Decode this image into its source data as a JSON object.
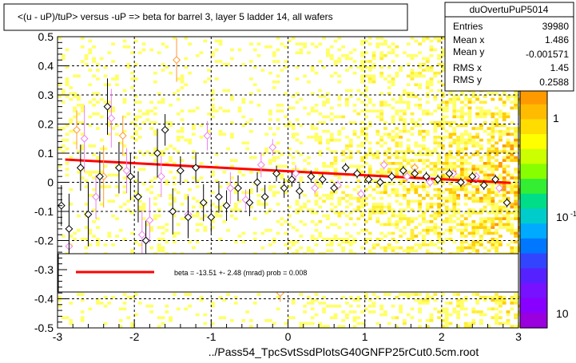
{
  "title": "<(u - uP)/tuP> versus  -uP => beta for barrel 3, layer 5 ladder 14, all wafers",
  "footer": "../Pass54_TpcSvtSsdPlotsG40GNFP25rCut0.5cm.root",
  "stats": {
    "name": "duOvertuPuP5014",
    "rows": [
      {
        "label": "Entries",
        "value": "39980"
      },
      {
        "label": "Mean x",
        "value": "1.486"
      },
      {
        "label": "Mean y",
        "value": "-0.001571"
      },
      {
        "label": "RMS x",
        "value": "1.45"
      },
      {
        "label": "RMS y",
        "value": "0.2588"
      }
    ]
  },
  "fit_legend": "beta =  -13.51 +-  2.48 (mrad) prob = 0.008",
  "colors": {
    "frame": "#000000",
    "fit_line": "#ff0000",
    "profile_black": "#000000",
    "profile_magenta": "#ee82ee",
    "profile_orange": "#ff9933",
    "heat_low": "#ffff66",
    "heat_mid": "#ff9900"
  },
  "chart_data": {
    "type": "heatmap",
    "x_range": [
      -3,
      3
    ],
    "y_range": [
      -0.5,
      0.5
    ],
    "x_ticks": [
      "-3",
      "-2",
      "-1",
      "0",
      "1",
      "2",
      "3"
    ],
    "y_ticks": [
      "-0.5",
      "-0.4",
      "-0.3",
      "-0.2",
      "-0.1",
      "0",
      "0.1",
      "0.2",
      "0.3",
      "0.4",
      "0.5"
    ],
    "z_ticks": [
      "1",
      "10",
      "10"
    ],
    "z_tick_exponent": "-1",
    "grid": true,
    "fit_line": {
      "x": [
        -2.9,
        2.9
      ],
      "y": [
        0.078,
        -0.002
      ]
    },
    "profile_black": {
      "x": [
        -2.95,
        -2.85,
        -2.7,
        -2.6,
        -2.45,
        -2.35,
        -2.2,
        -2.05,
        -1.95,
        -1.85,
        -1.7,
        -1.6,
        -1.5,
        -1.4,
        -1.3,
        -1.2,
        -1.1,
        -1.0,
        -0.9,
        -0.8,
        -0.65,
        -0.5,
        -0.4,
        -0.3,
        -0.15,
        -0.05,
        0.05,
        0.15,
        0.3,
        0.45,
        0.6,
        0.75,
        0.9,
        1.05,
        1.2,
        1.35,
        1.5,
        1.65,
        1.8,
        1.95,
        2.1,
        2.25,
        2.4,
        2.55,
        2.7,
        2.85
      ],
      "y": [
        -0.08,
        -0.16,
        0.05,
        -0.11,
        0.02,
        0.26,
        0.05,
        0.02,
        -0.05,
        -0.2,
        0.1,
        0.18,
        -0.1,
        0.04,
        -0.12,
        0.05,
        -0.07,
        -0.12,
        -0.05,
        -0.08,
        -0.02,
        -0.07,
        0.0,
        -0.05,
        0.03,
        -0.02,
        0.01,
        -0.03,
        0.02,
        0.01,
        -0.02,
        0.05,
        0.03,
        0.01,
        0.0,
        0.02,
        0.04,
        0.03,
        0.02,
        0.01,
        0.03,
        0.0,
        0.02,
        -0.01,
        0.01,
        -0.07
      ]
    },
    "profile_magenta": {
      "x": [
        -2.85,
        -2.65,
        -2.5,
        -2.3,
        -2.1,
        -1.9,
        -1.8,
        -1.65,
        -1.3,
        -1.05,
        -0.75,
        -0.55,
        -0.35,
        -0.2,
        0.1,
        0.35,
        0.65,
        0.95,
        1.25,
        1.55,
        1.85,
        2.15,
        2.45,
        2.75
      ],
      "y": [
        -0.22,
        0.15,
        -0.05,
        0.22,
        0.04,
        -0.18,
        -0.13,
        0.02,
        -0.11,
        0.16,
        -0.02,
        -0.06,
        0.06,
        0.12,
        0.03,
        -0.02,
        -0.01,
        -0.04,
        0.06,
        0.02,
        0.0,
        0.03,
        0.02,
        -0.02
      ]
    },
    "profile_orange": {
      "x": [
        -2.75,
        -2.4,
        -2.15,
        -1.45,
        -0.1,
        1.65,
        2.3
      ],
      "y": [
        0.18,
        0.02,
        0.16,
        0.42,
        -0.38,
        0.05,
        0.0
      ]
    }
  }
}
